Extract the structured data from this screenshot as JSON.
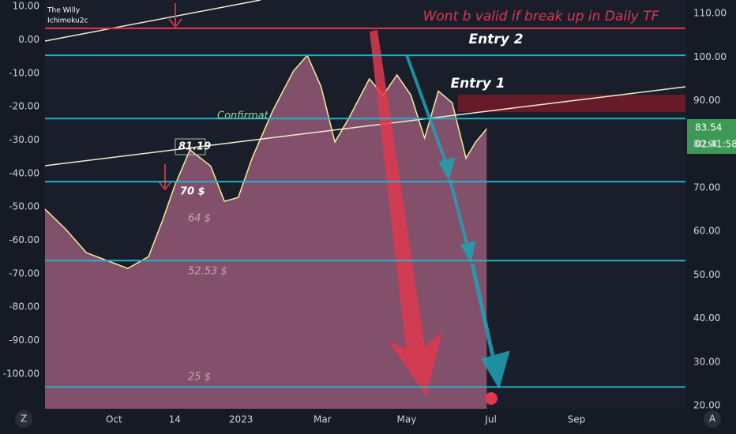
{
  "chart_data": {
    "type": "line",
    "annotations": [
      {
        "text": "The Willy",
        "color": "#ffffff"
      },
      {
        "text": "Ichimoku2c",
        "color": "#ffffff"
      },
      {
        "text": "Wont b valid if break up in Daily TF",
        "color": "#e0384f"
      },
      {
        "text": "Entry 2",
        "color": "#ffffff"
      },
      {
        "text": "Entry 1",
        "color": "#ffffff"
      },
      {
        "text": "Confirmat",
        "color": "#8fd19e"
      },
      {
        "text": "81.19",
        "color": "#ffffff"
      },
      {
        "text": "70 $",
        "color": "#ffffff"
      },
      {
        "text": "64 $",
        "color": "#c9a3b3"
      },
      {
        "text": "52.53 $",
        "color": "#c9a3b3"
      },
      {
        "text": "25 $",
        "color": "#c9a3b3"
      }
    ],
    "x": [
      -50,
      -35,
      -20,
      -5,
      10,
      25,
      35,
      44,
      55,
      70,
      80,
      90,
      100,
      115,
      130,
      140,
      150,
      160,
      170,
      185,
      195,
      205,
      215,
      225,
      235,
      245,
      255,
      262,
      270
    ],
    "series": [
      {
        "color": "#f0f0a0",
        "axis": "y2",
        "values": [
          65.1,
          60.5,
          55.1,
          53.3,
          51.5,
          54.2,
          62.4,
          70.5,
          78.7,
          75.0,
          66.9,
          67.8,
          76.8,
          87.7,
          96.8,
          100.4,
          93.2,
          80.5,
          85.9,
          95.0,
          91.3,
          95.9,
          91.3,
          81.4,
          92.2,
          89.5,
          76.8,
          80.5,
          83.54
        ]
      }
    ],
    "hlines": [
      {
        "value": 106.6,
        "color": "#e0384f"
      },
      {
        "value": 100.4,
        "color": "#22b3c4"
      },
      {
        "value": 85.9,
        "color": "#22b3c4"
      },
      {
        "value": 71.4,
        "color": "#22b3c4"
      },
      {
        "value": 53.3,
        "color": "#22b3c4"
      },
      {
        "value": 24.3,
        "color": "#22b3c4"
      }
    ],
    "last_price": 83.54,
    "countdown": "02:41:58",
    "xlim": [
      -50,
      414
    ],
    "xticks": [
      {
        "value": 0,
        "label": "Oct"
      },
      {
        "value": 44,
        "label": "14"
      },
      {
        "value": 92,
        "label": "2023"
      },
      {
        "value": 151,
        "label": "Mar"
      },
      {
        "value": 212,
        "label": "May"
      },
      {
        "value": 273,
        "label": "Jul"
      },
      {
        "value": 335,
        "label": "Sep"
      }
    ],
    "ylim": [
      -110.4,
      11.9
    ],
    "yticks": [
      {
        "value": 10,
        "label": "10.00"
      },
      {
        "value": 0,
        "label": "0.00"
      },
      {
        "value": -10,
        "label": "-10.00"
      },
      {
        "value": -20,
        "label": "-20.00"
      },
      {
        "value": -30,
        "label": "-30.00"
      },
      {
        "value": -40,
        "label": "-40.00"
      },
      {
        "value": -50,
        "label": "-50.00"
      },
      {
        "value": -60,
        "label": "-60.00"
      },
      {
        "value": -70,
        "label": "-70.00"
      },
      {
        "value": -80,
        "label": "-80.00"
      },
      {
        "value": -90,
        "label": "-90.00"
      },
      {
        "value": -100,
        "label": "-100.00"
      }
    ],
    "y2lim": [
      19.3,
      113.1
    ],
    "y2ticks": [
      {
        "value": 110,
        "label": "110.00"
      },
      {
        "value": 100,
        "label": "100.00"
      },
      {
        "value": 90,
        "label": "90.00"
      },
      {
        "value": 80,
        "label": "80.00"
      },
      {
        "value": 70,
        "label": "70.00"
      },
      {
        "value": 60,
        "label": "60.00"
      },
      {
        "value": 50,
        "label": "50.00"
      },
      {
        "value": 40,
        "label": "40.00"
      },
      {
        "value": 30,
        "label": "30.00"
      },
      {
        "value": 20,
        "label": "20.00"
      }
    ],
    "buttons": [
      "Z",
      "A"
    ]
  }
}
